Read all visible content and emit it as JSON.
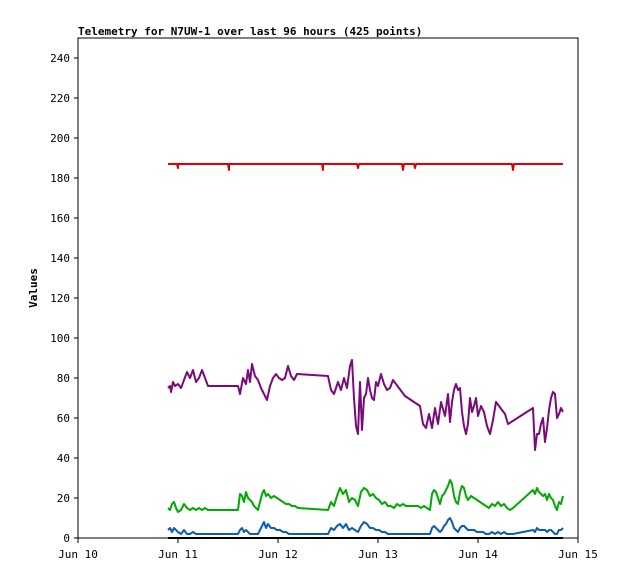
{
  "chart_data": {
    "type": "line",
    "title": "Telemetry for N7UW-1 over last 96 hours (425 points)",
    "xlabel": "",
    "ylabel": "Values",
    "x_ticks": [
      "Jun 10",
      "Jun 11",
      "Jun 12",
      "Jun 13",
      "Jun 14",
      "Jun 15"
    ],
    "xlim": [
      0,
      5
    ],
    "ylim": [
      0,
      250
    ],
    "y_ticks": [
      0,
      20,
      40,
      60,
      80,
      100,
      120,
      140,
      160,
      180,
      200,
      220,
      240
    ],
    "grid": false,
    "legend": "none",
    "series": [
      {
        "color": "#e00000",
        "x": [
          0.9,
          0.99,
          1.0,
          1.0,
          1.01,
          1.5,
          1.51,
          1.51,
          1.52,
          2.44,
          2.45,
          2.45,
          2.46,
          2.79,
          2.8,
          2.81,
          3.24,
          3.25,
          3.26,
          3.36,
          3.37,
          3.38,
          4.34,
          4.35,
          4.36,
          4.85
        ],
        "y": [
          187,
          187,
          185,
          187,
          187,
          187,
          184,
          187,
          187,
          187,
          184,
          187,
          187,
          187,
          185,
          187,
          187,
          184,
          187,
          187,
          185,
          187,
          187,
          184,
          187,
          187
        ]
      },
      {
        "color": "#7a0a7a",
        "x": [
          0.9,
          0.92,
          0.93,
          0.95,
          0.97,
          1.0,
          1.03,
          1.06,
          1.09,
          1.12,
          1.15,
          1.18,
          1.21,
          1.24,
          1.27,
          1.3,
          1.6,
          1.62,
          1.65,
          1.68,
          1.7,
          1.72,
          1.74,
          1.77,
          1.8,
          1.83,
          1.86,
          1.89,
          1.92,
          1.95,
          1.98,
          2.01,
          2.04,
          2.07,
          2.1,
          2.13,
          2.16,
          2.19,
          2.5,
          2.53,
          2.56,
          2.6,
          2.63,
          2.66,
          2.69,
          2.72,
          2.74,
          2.76,
          2.78,
          2.8,
          2.82,
          2.84,
          2.86,
          2.88,
          2.9,
          2.92,
          2.94,
          2.96,
          2.98,
          3.0,
          3.03,
          3.06,
          3.09,
          3.12,
          3.15,
          3.18,
          3.21,
          3.24,
          3.27,
          3.3,
          3.33,
          3.36,
          3.39,
          3.42,
          3.45,
          3.48,
          3.51,
          3.54,
          3.57,
          3.6,
          3.63,
          3.67,
          3.7,
          3.72,
          3.74,
          3.76,
          3.78,
          3.8,
          3.82,
          3.84,
          3.86,
          3.88,
          3.9,
          3.92,
          3.94,
          3.96,
          3.98,
          4.0,
          4.03,
          4.06,
          4.09,
          4.12,
          4.15,
          4.18,
          4.21,
          4.24,
          4.27,
          4.3,
          4.55,
          4.57,
          4.59,
          4.61,
          4.63,
          4.65,
          4.67,
          4.69,
          4.71,
          4.73,
          4.75,
          4.77,
          4.79,
          4.81,
          4.83,
          4.85
        ],
        "y": [
          75,
          76,
          73,
          78,
          76,
          77,
          75,
          79,
          83,
          80,
          84,
          78,
          80,
          84,
          80,
          76,
          76,
          72,
          80,
          77,
          84,
          78,
          87,
          81,
          79,
          75,
          72,
          69,
          76,
          80,
          82,
          80,
          79,
          80,
          86,
          81,
          79,
          82,
          81,
          74,
          72,
          78,
          74,
          80,
          75,
          86,
          89,
          70,
          56,
          52,
          78,
          54,
          70,
          72,
          80,
          74,
          70,
          69,
          78,
          76,
          82,
          77,
          74,
          75,
          79,
          77,
          75,
          73,
          71,
          70,
          69,
          68,
          67,
          66,
          57,
          55,
          62,
          55,
          65,
          57,
          68,
          61,
          72,
          58,
          68,
          74,
          77,
          74,
          75,
          63,
          56,
          52,
          57,
          70,
          63,
          66,
          70,
          61,
          66,
          63,
          56,
          52,
          59,
          68,
          66,
          64,
          62,
          57,
          65,
          44,
          52,
          52,
          57,
          60,
          48,
          55,
          64,
          70,
          73,
          72,
          60,
          62,
          65,
          63
        ]
      },
      {
        "color": "#00aa00",
        "x": [
          0.9,
          0.92,
          0.94,
          0.96,
          0.98,
          1.0,
          1.03,
          1.06,
          1.09,
          1.12,
          1.15,
          1.18,
          1.21,
          1.24,
          1.27,
          1.3,
          1.6,
          1.62,
          1.64,
          1.66,
          1.68,
          1.7,
          1.72,
          1.74,
          1.76,
          1.78,
          1.8,
          1.82,
          1.84,
          1.86,
          1.88,
          1.9,
          1.93,
          1.96,
          1.99,
          2.02,
          2.05,
          2.08,
          2.11,
          2.14,
          2.17,
          2.2,
          2.5,
          2.53,
          2.56,
          2.59,
          2.62,
          2.65,
          2.68,
          2.71,
          2.74,
          2.77,
          2.8,
          2.83,
          2.86,
          2.89,
          2.92,
          2.95,
          2.98,
          3.01,
          3.04,
          3.07,
          3.1,
          3.13,
          3.16,
          3.19,
          3.22,
          3.25,
          3.28,
          3.31,
          3.34,
          3.37,
          3.4,
          3.43,
          3.46,
          3.49,
          3.52,
          3.54,
          3.56,
          3.58,
          3.6,
          3.62,
          3.64,
          3.66,
          3.68,
          3.7,
          3.72,
          3.74,
          3.76,
          3.78,
          3.8,
          3.82,
          3.84,
          3.86,
          3.88,
          3.9,
          3.93,
          3.96,
          3.99,
          4.02,
          4.05,
          4.08,
          4.11,
          4.14,
          4.17,
          4.2,
          4.23,
          4.26,
          4.29,
          4.32,
          4.35,
          4.55,
          4.57,
          4.59,
          4.61,
          4.63,
          4.65,
          4.67,
          4.69,
          4.71,
          4.73,
          4.75,
          4.77,
          4.79,
          4.81,
          4.83,
          4.85
        ],
        "y": [
          15,
          14,
          17,
          18,
          15,
          13,
          14,
          17,
          15,
          14,
          15,
          14,
          15,
          14,
          15,
          14,
          14,
          22,
          21,
          18,
          23,
          20,
          19,
          18,
          16,
          15,
          14,
          18,
          22,
          24,
          21,
          22,
          20,
          21,
          20,
          19,
          18,
          17,
          17,
          16,
          16,
          15,
          14,
          18,
          16,
          21,
          25,
          22,
          24,
          18,
          20,
          19,
          16,
          23,
          25,
          24,
          21,
          22,
          20,
          19,
          17,
          18,
          16,
          16,
          15,
          17,
          16,
          17,
          16,
          16,
          16,
          16,
          16,
          15,
          16,
          15,
          14,
          22,
          24,
          23,
          20,
          17,
          21,
          22,
          24,
          26,
          29,
          27,
          21,
          18,
          17,
          23,
          26,
          25,
          21,
          19,
          21,
          20,
          19,
          18,
          17,
          16,
          15,
          17,
          16,
          18,
          16,
          17,
          15,
          14,
          15,
          24,
          22,
          25,
          23,
          22,
          21,
          22,
          19,
          22,
          20,
          19,
          16,
          14,
          18,
          17,
          21
        ]
      },
      {
        "color": "#0a5fb4",
        "x": [
          0.9,
          0.92,
          0.94,
          0.96,
          0.98,
          1.0,
          1.03,
          1.06,
          1.09,
          1.12,
          1.15,
          1.18,
          1.21,
          1.24,
          1.27,
          1.3,
          1.6,
          1.62,
          1.64,
          1.66,
          1.68,
          1.7,
          1.72,
          1.74,
          1.76,
          1.78,
          1.8,
          1.82,
          1.84,
          1.86,
          1.88,
          1.9,
          1.93,
          1.96,
          1.99,
          2.02,
          2.05,
          2.08,
          2.11,
          2.14,
          2.17,
          2.2,
          2.5,
          2.53,
          2.56,
          2.59,
          2.62,
          2.65,
          2.68,
          2.71,
          2.74,
          2.77,
          2.8,
          2.83,
          2.86,
          2.89,
          2.92,
          2.95,
          2.98,
          3.01,
          3.04,
          3.07,
          3.1,
          3.13,
          3.16,
          3.19,
          3.22,
          3.25,
          3.28,
          3.31,
          3.34,
          3.37,
          3.4,
          3.43,
          3.46,
          3.49,
          3.52,
          3.54,
          3.56,
          3.58,
          3.6,
          3.62,
          3.64,
          3.66,
          3.68,
          3.7,
          3.72,
          3.74,
          3.76,
          3.78,
          3.8,
          3.82,
          3.84,
          3.86,
          3.88,
          3.9,
          3.93,
          3.96,
          3.99,
          4.02,
          4.05,
          4.08,
          4.11,
          4.14,
          4.17,
          4.2,
          4.23,
          4.26,
          4.29,
          4.32,
          4.35,
          4.55,
          4.57,
          4.59,
          4.61,
          4.63,
          4.65,
          4.67,
          4.69,
          4.71,
          4.73,
          4.75,
          4.77,
          4.79,
          4.81,
          4.83,
          4.85
        ],
        "y": [
          4,
          5,
          3,
          5,
          4,
          3,
          2,
          4,
          2,
          2,
          3,
          2,
          2,
          2,
          2,
          2,
          2,
          4,
          5,
          3,
          4,
          3,
          2,
          2,
          2,
          2,
          2,
          4,
          6,
          8,
          5,
          7,
          5,
          5,
          4,
          4,
          3,
          3,
          2,
          2,
          2,
          2,
          2,
          5,
          4,
          6,
          7,
          5,
          7,
          4,
          5,
          4,
          3,
          6,
          8,
          7,
          5,
          5,
          4,
          4,
          3,
          3,
          2,
          2,
          2,
          2,
          2,
          2,
          2,
          2,
          2,
          2,
          2,
          2,
          2,
          2,
          2,
          5,
          6,
          5,
          4,
          3,
          4,
          6,
          7,
          9,
          10,
          8,
          5,
          4,
          3,
          5,
          6,
          6,
          5,
          4,
          4,
          4,
          3,
          3,
          3,
          2,
          2,
          3,
          2,
          3,
          2,
          3,
          2,
          2,
          2,
          4,
          3,
          5,
          4,
          4,
          4,
          4,
          3,
          4,
          4,
          3,
          2,
          2,
          4,
          4,
          5
        ]
      },
      {
        "color": "#000000",
        "x": [
          0.9,
          4.85
        ],
        "y": [
          0,
          0
        ]
      }
    ]
  }
}
